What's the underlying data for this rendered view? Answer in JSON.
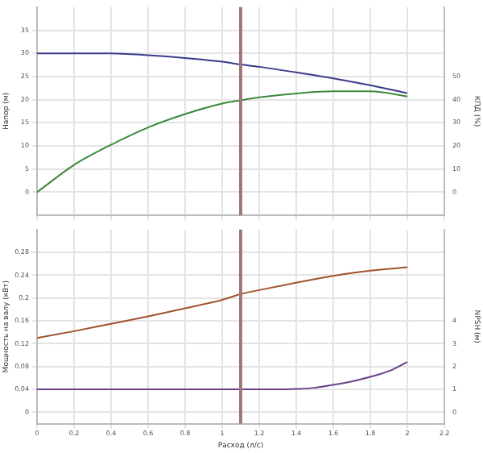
{
  "chart_data": [
    {
      "type": "line",
      "xlabel": null,
      "ylabel": "Напор (м)",
      "y2label": "КПД (%)",
      "xlim": [
        0,
        2.2
      ],
      "xticks": [
        0,
        0.2,
        0.4,
        0.6,
        0.8,
        1,
        1.2,
        1.4,
        1.6,
        1.8,
        2,
        2.2
      ],
      "ylim": [
        -5,
        40
      ],
      "yticks": [
        0,
        5,
        10,
        15,
        20,
        25,
        30,
        35
      ],
      "y2lim": [
        -10,
        80
      ],
      "y2ticks": [
        0,
        10,
        20,
        30,
        40,
        50
      ],
      "grid": true,
      "marker": "none",
      "tick_labels": "y",
      "ref_lines": [
        {
          "axis": "x",
          "value": 1.1,
          "color": "#a07878"
        }
      ],
      "series": [
        {
          "color": "#3a3a8c",
          "x": [
            0,
            0.2,
            0.4,
            0.6,
            0.8,
            1,
            1.1,
            1.2,
            1.4,
            1.6,
            1.8,
            2
          ],
          "values": [
            30,
            30,
            30,
            29.6,
            29,
            28.2,
            27.6,
            27.1,
            25.9,
            24.6,
            23.1,
            21.4
          ]
        },
        {
          "color": "#3a8a3a",
          "axis": "y2",
          "x": [
            0,
            0.2,
            0.4,
            0.6,
            0.8,
            1,
            1.1,
            1.2,
            1.4,
            1.6,
            1.8,
            2
          ],
          "values": [
            0,
            11.8,
            20.5,
            28,
            33.8,
            38.3,
            39.7,
            41,
            42.7,
            43.6,
            43.6,
            41.4
          ]
        }
      ]
    },
    {
      "type": "line",
      "xlabel": "Расход (л/с)",
      "ylabel": "Мощность на валу (кВт)",
      "y2label": "NPSH (м)",
      "xlim": [
        0,
        2.2
      ],
      "xticks": [
        0,
        0.2,
        0.4,
        0.6,
        0.8,
        1,
        1.2,
        1.4,
        1.6,
        1.8,
        2,
        2.2
      ],
      "ylim": [
        -0.02,
        0.32
      ],
      "yticks": [
        0,
        0.04,
        0.08,
        0.12,
        0.16,
        0.2,
        0.24,
        0.28
      ],
      "y2lim": [
        -0.5,
        8
      ],
      "y2ticks": [
        0,
        1,
        2,
        3,
        4
      ],
      "grid": true,
      "marker": "none",
      "ref_lines": [
        {
          "axis": "x",
          "value": 1.1,
          "color": "#a07878"
        }
      ],
      "series": [
        {
          "color": "#a0522d",
          "x": [
            0,
            0.2,
            0.4,
            0.6,
            0.8,
            1,
            1.1,
            1.2,
            1.4,
            1.6,
            1.8,
            2
          ],
          "values": [
            0.13,
            0.142,
            0.155,
            0.168,
            0.182,
            0.197,
            0.207,
            0.214,
            0.227,
            0.239,
            0.248,
            0.254
          ]
        },
        {
          "color": "#6a3d8a",
          "axis": "y2",
          "x": [
            0,
            0.4,
            0.8,
            1.2,
            1.3,
            1.4,
            1.5,
            1.6,
            1.7,
            1.8,
            1.9,
            2
          ],
          "values": [
            1,
            1,
            1,
            1,
            1,
            1.02,
            1.07,
            1.2,
            1.35,
            1.55,
            1.8,
            2.2
          ]
        }
      ]
    }
  ]
}
